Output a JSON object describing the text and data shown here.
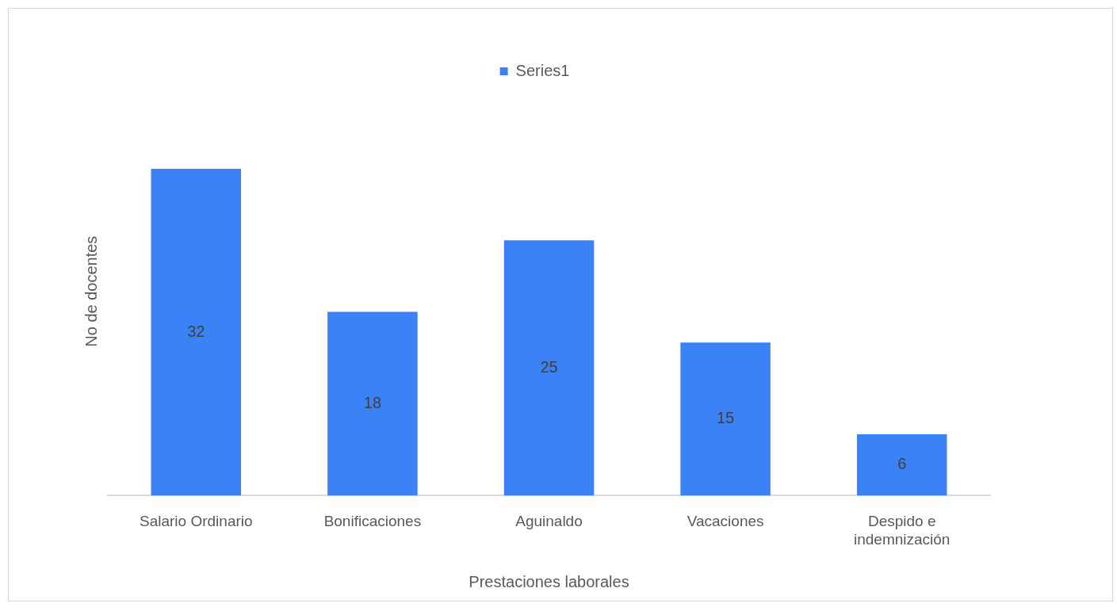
{
  "chart_data": {
    "type": "bar",
    "xlabel": "Prestaciones laborales",
    "ylabel": "No de docentes",
    "categories": [
      "Salario Ordinario",
      "Bonificaciones",
      "Aguinaldo",
      "Vacaciones",
      "Despido e indemnización"
    ],
    "series": [
      {
        "name": "Series1",
        "color": "#3b82f6",
        "values": [
          32,
          18,
          25,
          15,
          6
        ]
      }
    ],
    "data_labels": true,
    "legend": "top",
    "grid": false,
    "tick_labels": "x"
  }
}
